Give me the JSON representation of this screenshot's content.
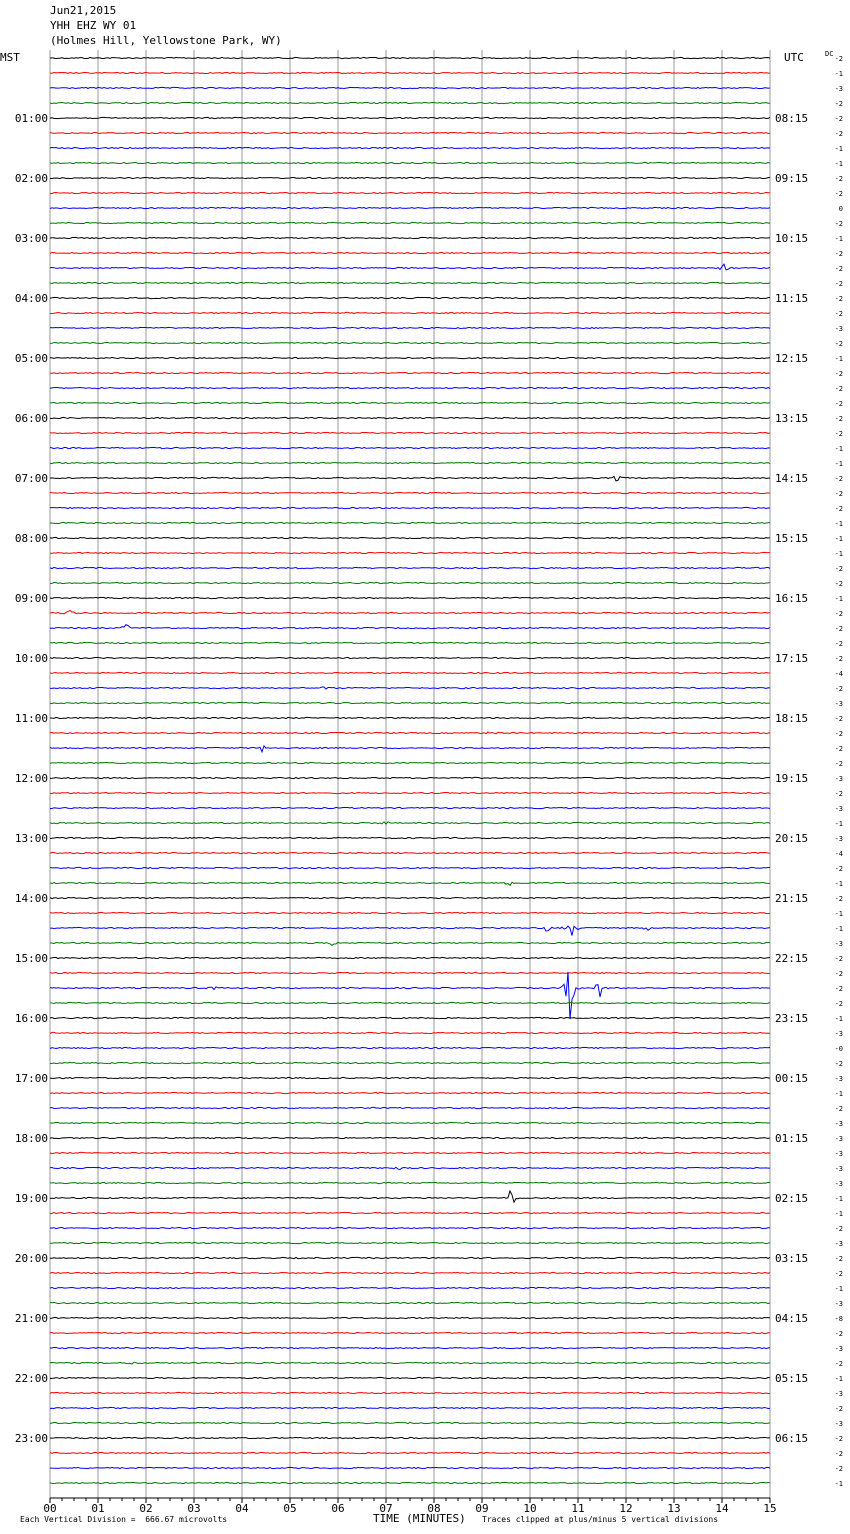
{
  "header": {
    "date": "Jun21,2015",
    "station": "YHH EHZ WY 01",
    "location": "(Holmes Hill, Yellowstone Park, WY)"
  },
  "left_zone": "MST",
  "right_zone": "UTC",
  "dc_label": "DC",
  "colors": {
    "trace_cycle": [
      "#000000",
      "#ff0000",
      "#0000ff",
      "#007700"
    ],
    "grid": "#999999"
  },
  "chart_data": {
    "type": "line",
    "title": "",
    "xlabel": "TIME (MINUTES)",
    "ylabel": "",
    "xlim": [
      0,
      15
    ],
    "x_ticks": [
      "00",
      "01",
      "02",
      "03",
      "04",
      "05",
      "06",
      "07",
      "08",
      "09",
      "10",
      "11",
      "12",
      "13",
      "14",
      "15"
    ],
    "rows_per_hour": 4,
    "row_count": 96,
    "left_hour_labels": [
      "",
      "01:00",
      "02:00",
      "03:00",
      "04:00",
      "05:00",
      "06:00",
      "07:00",
      "08:00",
      "09:00",
      "10:00",
      "11:00",
      "12:00",
      "13:00",
      "14:00",
      "15:00",
      "16:00",
      "17:00",
      "18:00",
      "19:00",
      "20:00",
      "21:00",
      "22:00",
      "23:00"
    ],
    "right_hour_labels": [
      "",
      "08:15",
      "09:15",
      "10:15",
      "11:15",
      "12:15",
      "13:15",
      "14:15",
      "15:15",
      "16:15",
      "17:15",
      "18:15",
      "19:15",
      "20:15",
      "21:15",
      "22:15",
      "23:15",
      "00:15",
      "01:15",
      "02:15",
      "03:15",
      "04:15",
      "05:15",
      "06:15"
    ],
    "dc_offsets": [
      "-2",
      "-1",
      "-3",
      "-2",
      "-2",
      "-2",
      "-1",
      "-1",
      "-2",
      "-2",
      "0",
      "-2",
      "-1",
      "-2",
      "-2",
      "-2",
      "-2",
      "-2",
      "-3",
      "-2",
      "-1",
      "-2",
      "-2",
      "-2",
      "-2",
      "-2",
      "-1",
      "-1",
      "-2",
      "-2",
      "-2",
      "-1",
      "-1",
      "-1",
      "-2",
      "-2",
      "-1",
      "-2",
      "-2",
      "-2",
      "-2",
      "-4",
      "-2",
      "-3",
      "-2",
      "-2",
      "-2",
      "-2",
      "-3",
      "-2",
      "-3",
      "-1",
      "-3",
      "-4",
      "-2",
      "-1",
      "-2",
      "-1",
      "-1",
      "-3",
      "-2",
      "-2",
      "-2",
      "-2",
      "-1",
      "-3",
      "-0",
      "-2",
      "-3",
      "-1",
      "-2",
      "-3",
      "-3",
      "-3",
      "-3",
      "-3",
      "-1",
      "-1",
      "-2",
      "-3",
      "-2",
      "-2",
      "-1",
      "-3",
      "-8",
      "-2",
      "-3",
      "-2",
      "-1",
      "-3",
      "-2",
      "-3",
      "-2",
      "-2",
      "-2",
      "-1"
    ],
    "events": [
      {
        "row": 14,
        "minute": 14.05,
        "amp": 5
      },
      {
        "row": 28,
        "minute": 11.8,
        "amp": 6
      },
      {
        "row": 37,
        "minute": 0.4,
        "amp": 5
      },
      {
        "row": 38,
        "minute": 1.6,
        "amp": 5
      },
      {
        "row": 42,
        "minute": 5.7,
        "amp": 4
      },
      {
        "row": 45,
        "minute": 9.2,
        "amp": 4
      },
      {
        "row": 46,
        "minute": 4.4,
        "amp": 7
      },
      {
        "row": 51,
        "minute": 6.95,
        "amp": 4
      },
      {
        "row": 55,
        "minute": 9.55,
        "amp": 5
      },
      {
        "row": 58,
        "minute": 10.35,
        "amp": 5
      },
      {
        "row": 58,
        "minute": 10.85,
        "amp": 12
      },
      {
        "row": 58,
        "minute": 12.45,
        "amp": 3
      },
      {
        "row": 59,
        "minute": 5.9,
        "amp": 4
      },
      {
        "row": 62,
        "minute": 10.85,
        "amp": 45
      },
      {
        "row": 62,
        "minute": 11.45,
        "amp": 12
      },
      {
        "row": 62,
        "minute": 3.4,
        "amp": 3
      },
      {
        "row": 73,
        "minute": 12.25,
        "amp": 4
      },
      {
        "row": 74,
        "minute": 7.25,
        "amp": 3
      },
      {
        "row": 76,
        "minute": 9.6,
        "amp": 12
      },
      {
        "row": 87,
        "minute": 1.75,
        "amp": 3
      }
    ]
  },
  "footer": {
    "scale": "Each Vertical Division =  666.67 microvolts",
    "clip": "Traces clipped at plus/minus 5 vertical divisions"
  }
}
